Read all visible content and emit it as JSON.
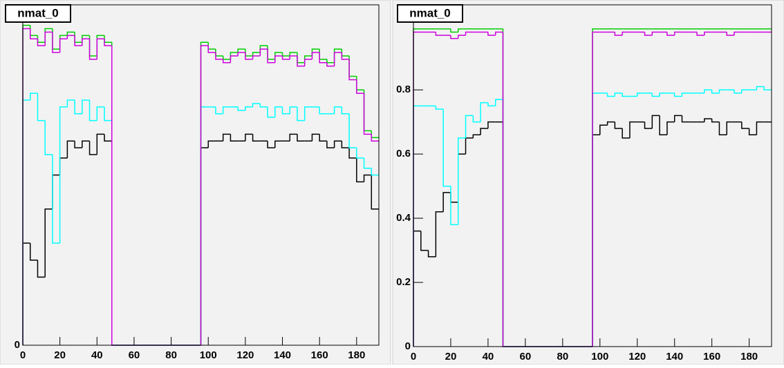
{
  "chart_data": [
    {
      "type": "histogram",
      "title": "nmat_0",
      "bins": [
        0,
        4,
        8,
        12,
        16,
        20,
        24,
        28,
        32,
        36,
        40,
        44,
        48,
        52,
        56,
        60,
        64,
        68,
        72,
        76,
        80,
        84,
        88,
        92,
        96,
        100,
        104,
        108,
        112,
        116,
        120,
        124,
        128,
        132,
        136,
        140,
        144,
        148,
        152,
        156,
        160,
        164,
        168,
        172,
        176,
        180,
        184,
        188,
        192
      ],
      "xlim": [
        0,
        192
      ],
      "ylim": [
        0,
        1
      ],
      "xticks": [
        0,
        20,
        40,
        60,
        80,
        100,
        120,
        140,
        160,
        180
      ],
      "yticks": [
        0
      ],
      "series": [
        {
          "color": "#000000",
          "values": [
            0.3,
            0.25,
            0.2,
            0.4,
            0.5,
            0.55,
            0.6,
            0.58,
            0.6,
            0.56,
            0.62,
            0.6,
            0,
            0,
            0,
            0,
            0,
            0,
            0,
            0,
            0,
            0,
            0,
            0,
            0.58,
            0.6,
            0.6,
            0.62,
            0.6,
            0.6,
            0.62,
            0.6,
            0.6,
            0.58,
            0.6,
            0.6,
            0.62,
            0.6,
            0.6,
            0.62,
            0.6,
            0.58,
            0.6,
            0.58,
            0.55,
            0.48,
            0.5,
            0.4
          ]
        },
        {
          "color": "#00ffff",
          "values": [
            0.72,
            0.74,
            0.66,
            0.56,
            0.3,
            0.7,
            0.72,
            0.68,
            0.72,
            0.66,
            0.7,
            0.66,
            0,
            0,
            0,
            0,
            0,
            0,
            0,
            0,
            0,
            0,
            0,
            0,
            0.7,
            0.7,
            0.68,
            0.7,
            0.7,
            0.69,
            0.7,
            0.71,
            0.7,
            0.67,
            0.7,
            0.68,
            0.7,
            0.66,
            0.7,
            0.7,
            0.68,
            0.68,
            0.7,
            0.68,
            0.58,
            0.55,
            0.52,
            0.5
          ]
        },
        {
          "color": "#00cc00",
          "values": [
            0.94,
            0.91,
            0.89,
            0.93,
            0.87,
            0.91,
            0.92,
            0.89,
            0.91,
            0.85,
            0.91,
            0.89,
            0,
            0,
            0,
            0,
            0,
            0,
            0,
            0,
            0,
            0,
            0,
            0,
            0.89,
            0.87,
            0.85,
            0.84,
            0.86,
            0.87,
            0.85,
            0.86,
            0.88,
            0.84,
            0.86,
            0.85,
            0.86,
            0.83,
            0.85,
            0.87,
            0.84,
            0.83,
            0.87,
            0.85,
            0.79,
            0.75,
            0.63,
            0.61
          ]
        },
        {
          "color": "#cc00dd",
          "values": [
            0.93,
            0.9,
            0.88,
            0.92,
            0.86,
            0.9,
            0.91,
            0.88,
            0.9,
            0.84,
            0.9,
            0.88,
            0,
            0,
            0,
            0,
            0,
            0,
            0,
            0,
            0,
            0,
            0,
            0,
            0.88,
            0.86,
            0.84,
            0.83,
            0.85,
            0.86,
            0.84,
            0.85,
            0.87,
            0.83,
            0.85,
            0.84,
            0.85,
            0.82,
            0.84,
            0.86,
            0.83,
            0.82,
            0.86,
            0.84,
            0.78,
            0.74,
            0.62,
            0.6
          ]
        }
      ]
    },
    {
      "type": "histogram",
      "title": "nmat_0",
      "bins": [
        0,
        4,
        8,
        12,
        16,
        20,
        24,
        28,
        32,
        36,
        40,
        44,
        48,
        52,
        56,
        60,
        64,
        68,
        72,
        76,
        80,
        84,
        88,
        92,
        96,
        100,
        104,
        108,
        112,
        116,
        120,
        124,
        128,
        132,
        136,
        140,
        144,
        148,
        152,
        156,
        160,
        164,
        168,
        172,
        176,
        180,
        184,
        188,
        192
      ],
      "xlim": [
        0,
        192
      ],
      "ylim": [
        0,
        1.065
      ],
      "xticks": [
        0,
        20,
        40,
        60,
        80,
        100,
        120,
        140,
        160,
        180
      ],
      "yticks": [
        0,
        0.2,
        0.4,
        0.6,
        0.8
      ],
      "series": [
        {
          "color": "#000000",
          "values": [
            0.36,
            0.3,
            0.28,
            0.42,
            0.48,
            0.45,
            0.6,
            0.65,
            0.66,
            0.68,
            0.7,
            0.7,
            0,
            0,
            0,
            0,
            0,
            0,
            0,
            0,
            0,
            0,
            0,
            0,
            0.66,
            0.69,
            0.7,
            0.68,
            0.65,
            0.7,
            0.7,
            0.68,
            0.72,
            0.66,
            0.7,
            0.72,
            0.7,
            0.7,
            0.7,
            0.71,
            0.7,
            0.66,
            0.7,
            0.7,
            0.68,
            0.66,
            0.7,
            0.7
          ]
        },
        {
          "color": "#00ffff",
          "values": [
            0.75,
            0.75,
            0.75,
            0.74,
            0.5,
            0.38,
            0.65,
            0.72,
            0.7,
            0.76,
            0.75,
            0.77,
            0,
            0,
            0,
            0,
            0,
            0,
            0,
            0,
            0,
            0,
            0,
            0,
            0.79,
            0.79,
            0.78,
            0.79,
            0.78,
            0.78,
            0.79,
            0.79,
            0.78,
            0.79,
            0.79,
            0.78,
            0.79,
            0.79,
            0.79,
            0.8,
            0.79,
            0.8,
            0.8,
            0.79,
            0.8,
            0.8,
            0.81,
            0.8
          ]
        },
        {
          "color": "#00cc00",
          "values": [
            0.99,
            0.99,
            0.99,
            0.99,
            0.99,
            0.98,
            0.99,
            0.99,
            0.99,
            0.99,
            0.99,
            0.99,
            0,
            0,
            0,
            0,
            0,
            0,
            0,
            0,
            0,
            0,
            0,
            0,
            0.99,
            0.99,
            0.99,
            0.99,
            0.99,
            0.99,
            0.99,
            0.99,
            0.99,
            0.99,
            0.99,
            0.99,
            0.99,
            0.99,
            0.99,
            0.99,
            0.99,
            0.99,
            0.99,
            0.99,
            0.99,
            0.99,
            0.99,
            0.99
          ]
        },
        {
          "color": "#cc00dd",
          "values": [
            0.98,
            0.98,
            0.98,
            0.97,
            0.97,
            0.96,
            0.97,
            0.98,
            0.98,
            0.98,
            0.97,
            0.98,
            0,
            0,
            0,
            0,
            0,
            0,
            0,
            0,
            0,
            0,
            0,
            0,
            0.98,
            0.98,
            0.98,
            0.97,
            0.98,
            0.98,
            0.98,
            0.97,
            0.98,
            0.98,
            0.97,
            0.98,
            0.98,
            0.98,
            0.97,
            0.98,
            0.98,
            0.98,
            0.97,
            0.98,
            0.98,
            0.98,
            0.98,
            0.98
          ]
        }
      ]
    }
  ]
}
